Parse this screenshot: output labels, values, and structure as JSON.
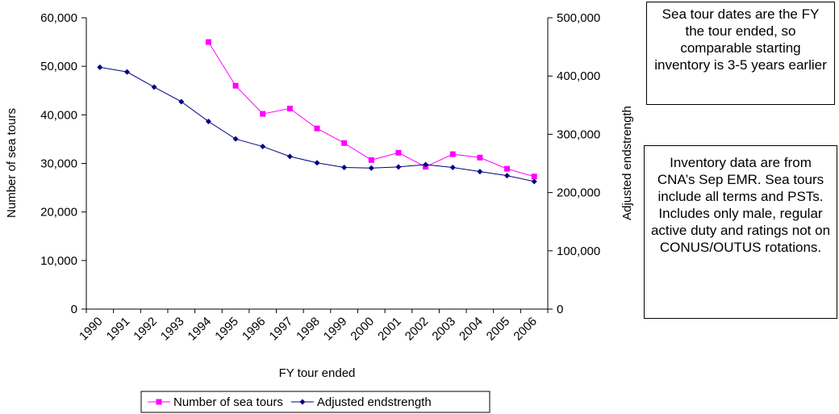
{
  "chart_data": {
    "type": "line",
    "xlabel": "FY tour ended",
    "ylabel_left": "Number of sea tours",
    "ylabel_right": "Adjusted endstrength",
    "categories": [
      "1990",
      "1991",
      "1992",
      "1993",
      "1994",
      "1995",
      "1996",
      "1997",
      "1998",
      "1999",
      "2000",
      "2001",
      "2002",
      "2003",
      "2004",
      "2005",
      "2006"
    ],
    "y_left": {
      "min": 0,
      "max": 60000,
      "ticks": [
        "0",
        "10,000",
        "20,000",
        "30,000",
        "40,000",
        "50,000",
        "60,000"
      ]
    },
    "y_right": {
      "min": 0,
      "max": 500000,
      "ticks": [
        "0",
        "100,000",
        "200,000",
        "300,000",
        "400,000",
        "500,000"
      ]
    },
    "series": [
      {
        "name": "Number of sea tours",
        "axis": "left",
        "color": "#ff00ff",
        "marker": "square",
        "values": [
          null,
          null,
          null,
          null,
          55000,
          46000,
          40200,
          41300,
          37200,
          34200,
          30700,
          32200,
          29300,
          31900,
          31200,
          28900,
          27300
        ]
      },
      {
        "name": "Adjusted endstrength",
        "axis": "right",
        "color": "#000080",
        "marker": "diamond",
        "values": [
          415000,
          407000,
          381000,
          356000,
          322000,
          292000,
          279000,
          262000,
          251000,
          243000,
          242000,
          244000,
          248000,
          243000,
          236000,
          229000,
          219000
        ]
      }
    ],
    "legend_position": "bottom",
    "grid": false
  },
  "annotations": {
    "note1": "Sea tour dates are the FY the tour ended, so comparable starting inventory  is 3-5 years earlier",
    "note2": "Inventory data are from CNA’s Sep EMR. Sea tours include all terms and PSTs. Includes only male, regular active duty and ratings not on CONUS/OUTUS rotations."
  }
}
